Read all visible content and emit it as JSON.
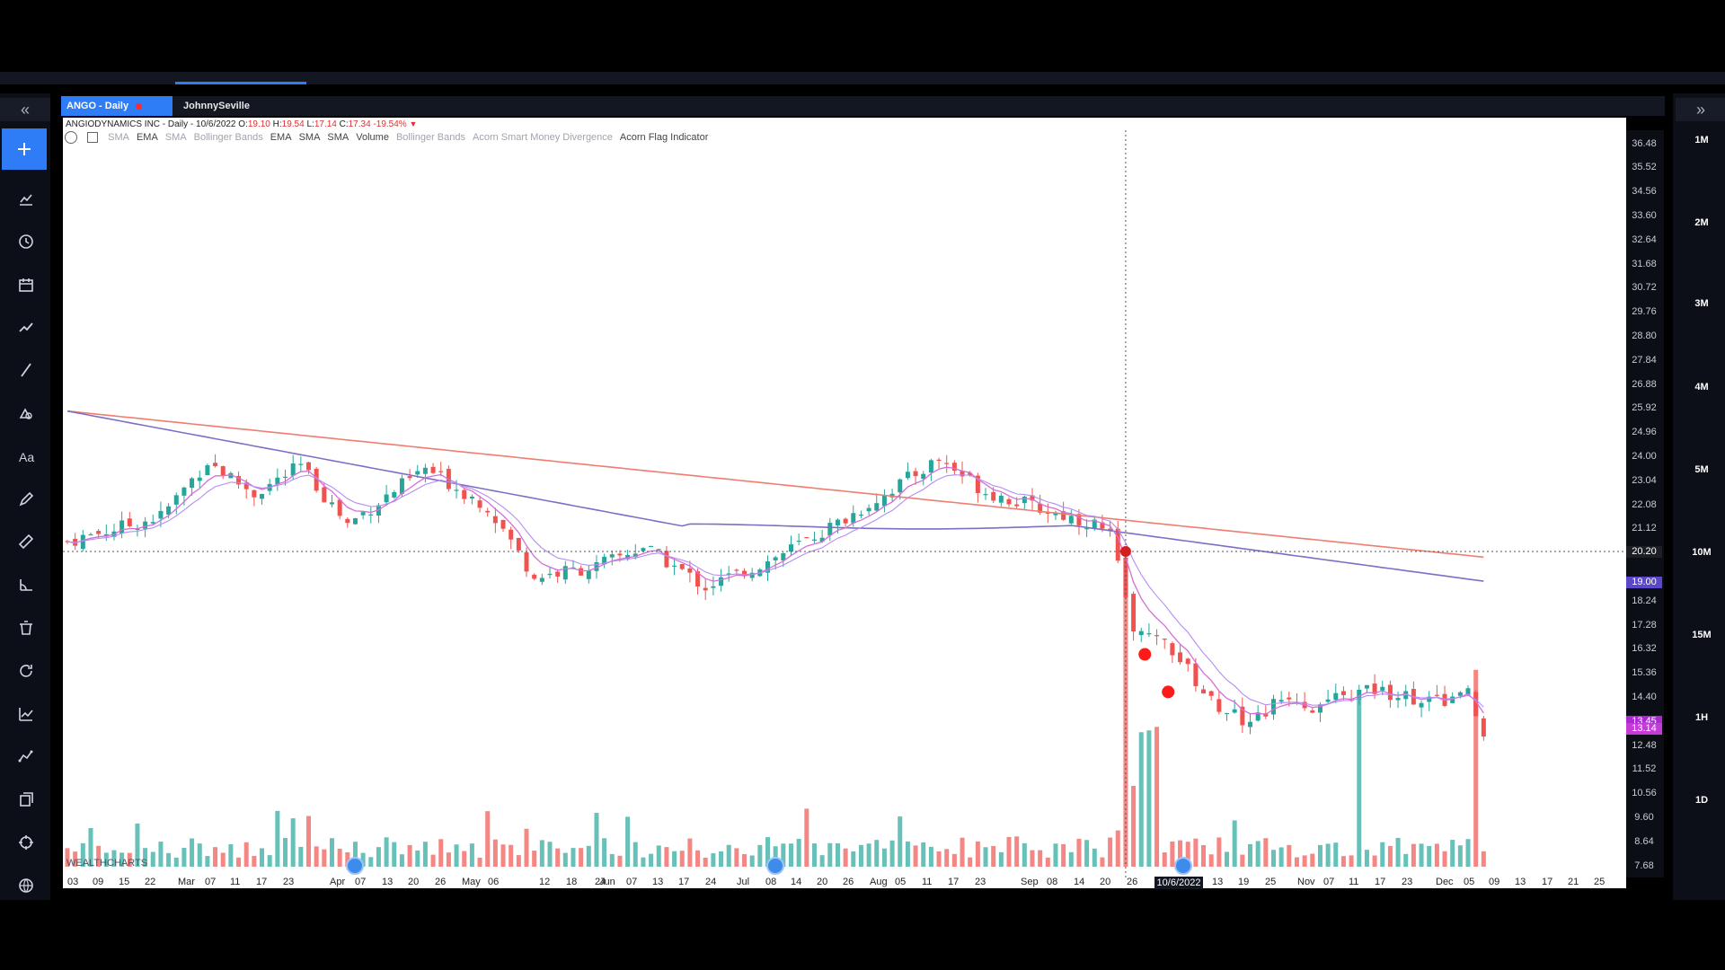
{
  "tabs": {
    "active": "ANGO - Daily",
    "user": "JohnnySeville"
  },
  "chart_info": {
    "name": "ANGIODYNAMICS INC - Daily - 10/6/2022",
    "o_label": "O:",
    "o": "19.10",
    "h_label": "H:",
    "h": "19.54",
    "l_label": "L:",
    "l": "17.14",
    "c_label": "C:",
    "c": "17.34",
    "change": "-19.54%"
  },
  "indicators": [
    {
      "label": "SMA",
      "faint": true
    },
    {
      "label": "EMA",
      "faint": false
    },
    {
      "label": "SMA",
      "faint": true
    },
    {
      "label": "Bollinger Bands",
      "faint": true
    },
    {
      "label": "EMA",
      "faint": false
    },
    {
      "label": "SMA",
      "faint": false
    },
    {
      "label": "SMA",
      "faint": false
    },
    {
      "label": "Volume",
      "faint": false
    },
    {
      "label": "Bollinger Bands",
      "faint": true
    },
    {
      "label": "Acorn Smart Money Divergence",
      "faint": true
    },
    {
      "label": "Acorn Flag Indicator",
      "faint": false
    }
  ],
  "left_toolbar": [
    {
      "name": "add-icon",
      "active": true
    },
    {
      "name": "chart-type-icon"
    },
    {
      "name": "clock-icon"
    },
    {
      "name": "calendar-icon"
    },
    {
      "name": "trend-icon"
    },
    {
      "name": "line-tool-icon"
    },
    {
      "name": "shapes-icon"
    },
    {
      "name": "text-tool-icon"
    },
    {
      "name": "pencil-icon"
    },
    {
      "name": "ruler-icon"
    },
    {
      "name": "angle-icon"
    },
    {
      "name": "trash-icon"
    },
    {
      "name": "refresh-icon"
    },
    {
      "name": "indicator-icon"
    },
    {
      "name": "pattern-icon"
    },
    {
      "name": "layers-icon"
    },
    {
      "name": "crosshair-icon"
    },
    {
      "name": "globe-icon"
    }
  ],
  "timeframes": [
    "1M",
    "2M",
    "3M",
    "4M",
    "5M",
    "10M",
    "15M",
    "1H",
    "1D"
  ],
  "y_ticks": [
    "36.48",
    "35.52",
    "34.56",
    "33.60",
    "32.64",
    "31.68",
    "30.72",
    "29.76",
    "28.80",
    "27.84",
    "26.88",
    "25.92",
    "24.96",
    "24.00",
    "23.04",
    "22.08",
    "21.12",
    "20.20",
    "19.00",
    "18.24",
    "17.28",
    "16.32",
    "15.36",
    "14.40",
    "13.45",
    "13.14",
    "12.48",
    "11.52",
    "10.56",
    "9.60",
    "8.64",
    "7.68"
  ],
  "price_badges": {
    "crosshair": "20.20",
    "sma": "19.00",
    "last_a": "13.45",
    "last_b": "13.14"
  },
  "x_ticks": [
    "03",
    "09",
    "15",
    "22",
    "Mar",
    "07",
    "11",
    "17",
    "23",
    "Apr",
    "07",
    "13",
    "20",
    "26",
    "May",
    "06",
    "12",
    "18",
    "24",
    "Jun",
    "07",
    "13",
    "17",
    "24",
    "Jul",
    "08",
    "14",
    "20",
    "26",
    "Aug",
    "05",
    "11",
    "17",
    "23",
    "Sep",
    "08",
    "14",
    "20",
    "26",
    "13",
    "19",
    "25",
    "Nov",
    "07",
    "11",
    "17",
    "23",
    "Dec",
    "05",
    "09",
    "13",
    "17",
    "21",
    "25"
  ],
  "x_selected": "10/6/2022",
  "branding": "WEALTHCHARTS",
  "chart_data": {
    "type": "candlestick",
    "ylim": [
      7.2,
      37.0
    ],
    "crosshair_date": "10/6/2022",
    "crosshair_price": 20.2,
    "series": [
      {
        "name": "SMA",
        "color": "#f07d6e"
      },
      {
        "name": "SMA",
        "color": "#7d6fc4"
      },
      {
        "name": "EMA",
        "color": "#d46fd8"
      },
      {
        "name": "EMA",
        "color": "#b58cf2"
      }
    ]
  },
  "colors": {
    "up": "#26a69a",
    "down": "#ef5350",
    "accent": "#2e7cf6"
  }
}
